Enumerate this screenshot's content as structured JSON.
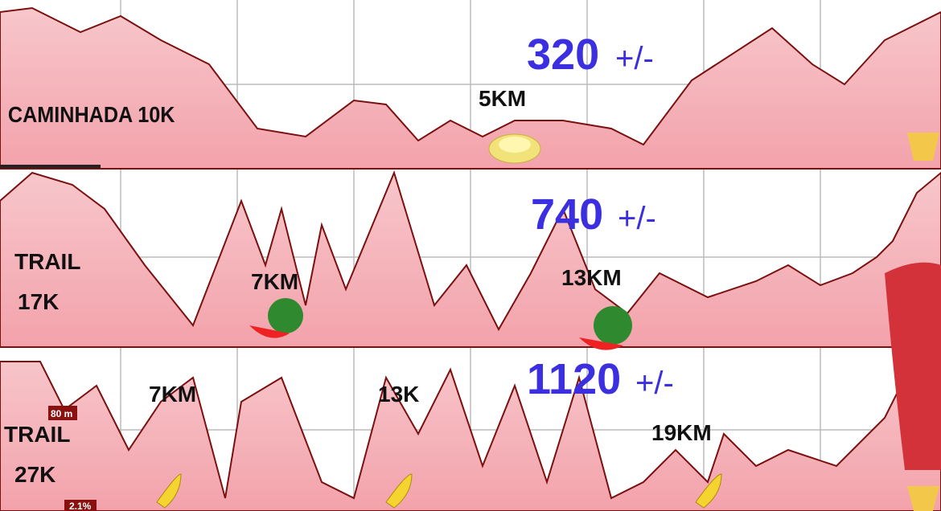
{
  "panels": [
    {
      "name_lines": [
        "CAMINHADA 10K"
      ],
      "gain": "320",
      "gain_suffix": "+/-",
      "markers": [
        "5KM"
      ]
    },
    {
      "name_lines": [
        "TRAIL",
        "17K"
      ],
      "gain": "740",
      "gain_suffix": "+/-",
      "markers": [
        "7KM",
        "13KM"
      ]
    },
    {
      "name_lines": [
        "TRAIL",
        "27K"
      ],
      "gain": "1120",
      "gain_suffix": "+/-",
      "markers": [
        "7KM",
        "13K",
        "19KM"
      ]
    }
  ],
  "badges": [
    "80 m",
    "2.1%"
  ]
}
